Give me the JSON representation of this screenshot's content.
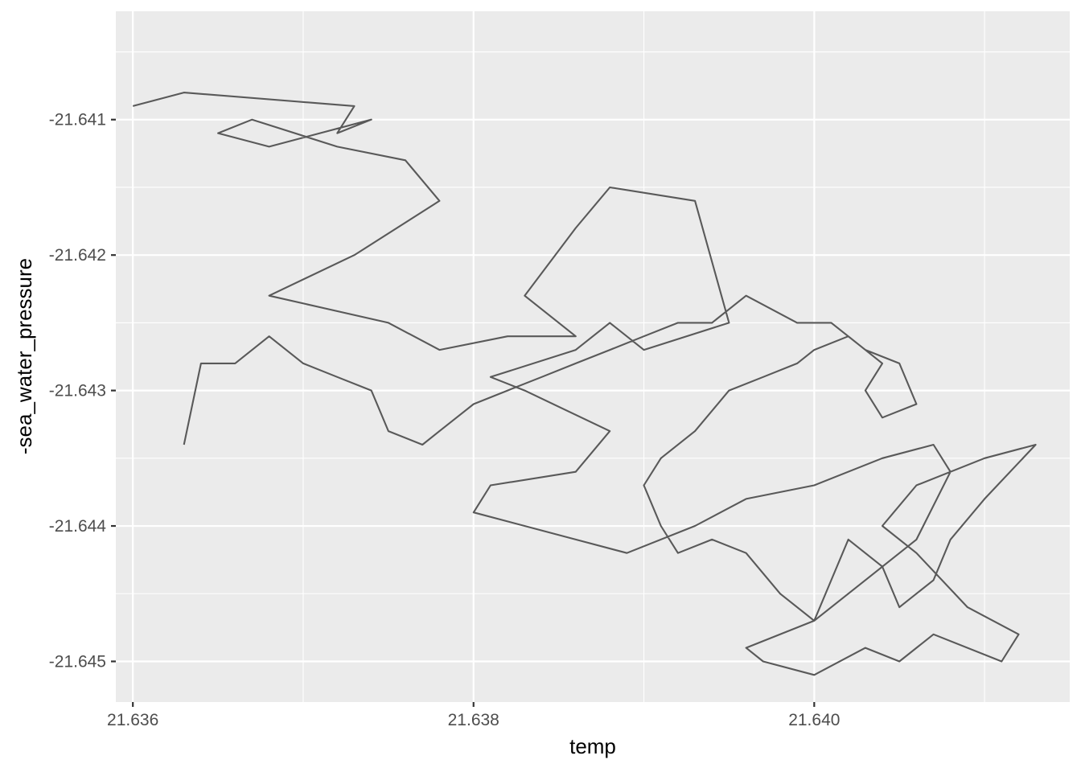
{
  "chart_data": {
    "type": "line",
    "title": "",
    "xlabel": "temp",
    "ylabel": "-sea_water_pressure",
    "xlim": [
      21.6359,
      21.6415
    ],
    "ylim": [
      -21.6453,
      -21.6402
    ],
    "x_ticks": [
      21.636,
      21.638,
      21.64
    ],
    "x_tick_labels": [
      "21.636",
      "21.638",
      "21.640"
    ],
    "y_ticks": [
      -21.641,
      -21.642,
      -21.643,
      -21.644,
      -21.645
    ],
    "y_tick_labels": [
      "-21.641",
      "-21.642",
      "-21.643",
      "-21.644",
      "-21.645"
    ],
    "grid": true,
    "legend": "none",
    "colors": {
      "panel": "#ebebeb",
      "grid": "#ffffff",
      "line": "#595959"
    },
    "series": [
      {
        "x": [
          21.636,
          21.6363,
          21.6373,
          21.6372,
          21.6374,
          21.6368,
          21.6365,
          21.6367,
          21.6372,
          21.6376,
          21.6378,
          21.6373,
          21.6368,
          21.6375,
          21.6378,
          21.6382,
          21.6386,
          21.6383,
          21.6386,
          21.6388,
          21.6393,
          21.6395,
          21.639,
          21.6388,
          21.6386,
          21.6381,
          21.6383,
          21.6388,
          21.6386,
          21.6381,
          21.638,
          21.6386,
          21.6389,
          21.6393,
          21.6396,
          21.64,
          21.6404,
          21.6407,
          21.6408,
          21.6406,
          21.6403,
          21.64,
          21.6396,
          21.6397,
          21.64,
          21.6403,
          21.6405,
          21.6407,
          21.6411,
          21.6412,
          21.6409,
          21.6406,
          21.6404,
          21.6406,
          21.641,
          21.6413,
          21.641,
          21.6408,
          21.6407,
          21.6405,
          21.6404,
          21.6402,
          21.6401,
          21.64,
          21.6398,
          21.6396,
          21.6394,
          21.6392,
          21.6391,
          21.639,
          21.6391,
          21.6393,
          21.6395,
          21.6397,
          21.6399,
          21.64,
          21.6402,
          21.6404,
          21.6403,
          21.6404,
          21.6406,
          21.6405,
          21.6403,
          21.6401,
          21.6399,
          21.6396,
          21.6394,
          21.6392,
          21.639,
          21.6388,
          21.6386,
          21.6384,
          21.6382,
          21.638,
          21.6378,
          21.6377,
          21.6375,
          21.6374,
          21.6372,
          21.637,
          21.6369,
          21.6368,
          21.6366,
          21.6365,
          21.6364,
          21.6363
        ],
        "y": [
          -21.6409,
          -21.6408,
          -21.6409,
          -21.6411,
          -21.641,
          -21.6412,
          -21.6411,
          -21.641,
          -21.6412,
          -21.6413,
          -21.6416,
          -21.642,
          -21.6423,
          -21.6425,
          -21.6427,
          -21.6426,
          -21.6426,
          -21.6423,
          -21.6418,
          -21.6415,
          -21.6416,
          -21.6425,
          -21.6427,
          -21.6425,
          -21.6427,
          -21.6429,
          -21.643,
          -21.6433,
          -21.6436,
          -21.6437,
          -21.6439,
          -21.6441,
          -21.6442,
          -21.644,
          -21.6438,
          -21.6437,
          -21.6435,
          -21.6434,
          -21.6436,
          -21.6441,
          -21.6444,
          -21.6447,
          -21.6449,
          -21.645,
          -21.6451,
          -21.6449,
          -21.645,
          -21.6448,
          -21.645,
          -21.6448,
          -21.6446,
          -21.6442,
          -21.644,
          -21.6437,
          -21.6435,
          -21.6434,
          -21.6438,
          -21.6441,
          -21.6444,
          -21.6446,
          -21.6443,
          -21.6441,
          -21.6444,
          -21.6447,
          -21.6445,
          -21.6442,
          -21.6441,
          -21.6442,
          -21.644,
          -21.6437,
          -21.6435,
          -21.6433,
          -21.643,
          -21.6429,
          -21.6428,
          -21.6427,
          -21.6426,
          -21.6428,
          -21.643,
          -21.6432,
          -21.6431,
          -21.6428,
          -21.6427,
          -21.6425,
          -21.6425,
          -21.6423,
          -21.6425,
          -21.6425,
          -21.6426,
          -21.6427,
          -21.6428,
          -21.6429,
          -21.643,
          -21.6431,
          -21.6433,
          -21.6434,
          -21.6433,
          -21.643,
          -21.6429,
          -21.6428,
          -21.6427,
          -21.6426,
          -21.6428,
          -21.6428,
          -21.6428,
          -21.6434
        ]
      }
    ]
  }
}
